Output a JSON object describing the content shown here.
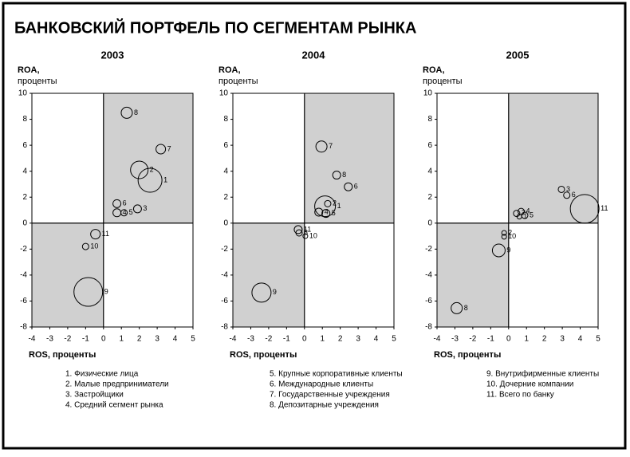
{
  "title": "БАНКОВСКИЙ ПОРТФЕЛЬ ПО СЕГМЕНТАМ РЫНКА",
  "legend_columns": [
    [
      "1. Физические лица",
      "2. Малые предприниматели",
      "3. Застройщики",
      "4. Средний сегмент рынка"
    ],
    [
      "5. Крупные корпоративные клиенты",
      "6. Международные клиенты",
      "7. Государственные учреждения",
      "8. Депозитарные учреждения"
    ],
    [
      "9. Внутрифирменные клиенты",
      "10. Дочерние компании",
      "11. Всего по банку"
    ]
  ],
  "chart_data": [
    {
      "type": "scatter",
      "title": "2003",
      "y_label": [
        "ROA,",
        "проценты"
      ],
      "x_label": "ROS, проценты",
      "labels": [
        "8",
        "7",
        "2",
        "1",
        "6",
        "4",
        "5",
        "3",
        "11",
        "10",
        "9"
      ],
      "x": [
        1.3,
        3.2,
        2.0,
        2.6,
        0.75,
        0.75,
        1.15,
        1.9,
        -0.45,
        -1.0,
        -0.85
      ],
      "y": [
        8.5,
        5.7,
        4.1,
        3.3,
        1.5,
        0.8,
        0.8,
        1.1,
        -0.85,
        -1.8,
        -5.3
      ],
      "sizes": [
        7,
        6,
        11,
        15,
        5,
        5,
        4,
        5,
        6,
        4,
        18
      ],
      "xlim": [
        -4,
        5
      ],
      "ylim": [
        -8,
        10
      ],
      "xticks": [
        -4,
        -3,
        -2,
        -1,
        0,
        1,
        2,
        3,
        4,
        5
      ],
      "yticks": [
        -8,
        -6,
        -4,
        -2,
        0,
        2,
        4,
        6,
        8,
        10
      ]
    },
    {
      "type": "scatter",
      "title": "2004",
      "y_label": [
        "ROA,",
        "проценты"
      ],
      "x_label": "ROS, проценты",
      "labels": [
        "7",
        "8",
        "6",
        "1",
        "2",
        "4",
        "5",
        "11",
        "8",
        "10",
        "9"
      ],
      "x": [
        0.95,
        1.8,
        2.45,
        1.15,
        1.3,
        0.8,
        1.2,
        -0.35,
        -0.3,
        0.05,
        -2.4
      ],
      "y": [
        5.9,
        3.7,
        2.8,
        1.3,
        1.5,
        0.85,
        0.75,
        -0.5,
        -0.75,
        -1.0,
        -5.35
      ],
      "sizes": [
        7,
        5,
        5,
        13,
        4,
        5,
        5,
        5,
        4,
        3,
        12
      ],
      "xlim": [
        -4,
        5
      ],
      "ylim": [
        -8,
        10
      ],
      "xticks": [
        -4,
        -3,
        -2,
        -1,
        0,
        1,
        2,
        3,
        4,
        5
      ],
      "yticks": [
        -8,
        -6,
        -4,
        -2,
        0,
        2,
        4,
        6,
        8,
        10
      ]
    },
    {
      "type": "scatter",
      "title": "2005",
      "y_label": [
        "ROA,",
        "проценты"
      ],
      "x_label": "ROS, проценты",
      "labels": [
        "11",
        "3",
        "6",
        "4",
        "7",
        "5",
        "1",
        "2",
        "10",
        "9",
        "8"
      ],
      "x": [
        4.25,
        2.95,
        3.25,
        0.7,
        0.45,
        0.9,
        0.6,
        -0.25,
        -0.25,
        -0.55,
        -2.9
      ],
      "y": [
        1.1,
        2.6,
        2.15,
        0.9,
        0.75,
        0.6,
        0.5,
        -0.75,
        -1.05,
        -2.1,
        -6.55
      ],
      "sizes": [
        18,
        4,
        4,
        4,
        4,
        4,
        3,
        3,
        3,
        8,
        7
      ],
      "xlim": [
        -4,
        5
      ],
      "ylim": [
        -8,
        10
      ],
      "xticks": [
        -4,
        -3,
        -2,
        -1,
        0,
        1,
        2,
        3,
        4,
        5
      ],
      "yticks": [
        -8,
        -6,
        -4,
        -2,
        0,
        2,
        4,
        6,
        8,
        10
      ]
    }
  ]
}
